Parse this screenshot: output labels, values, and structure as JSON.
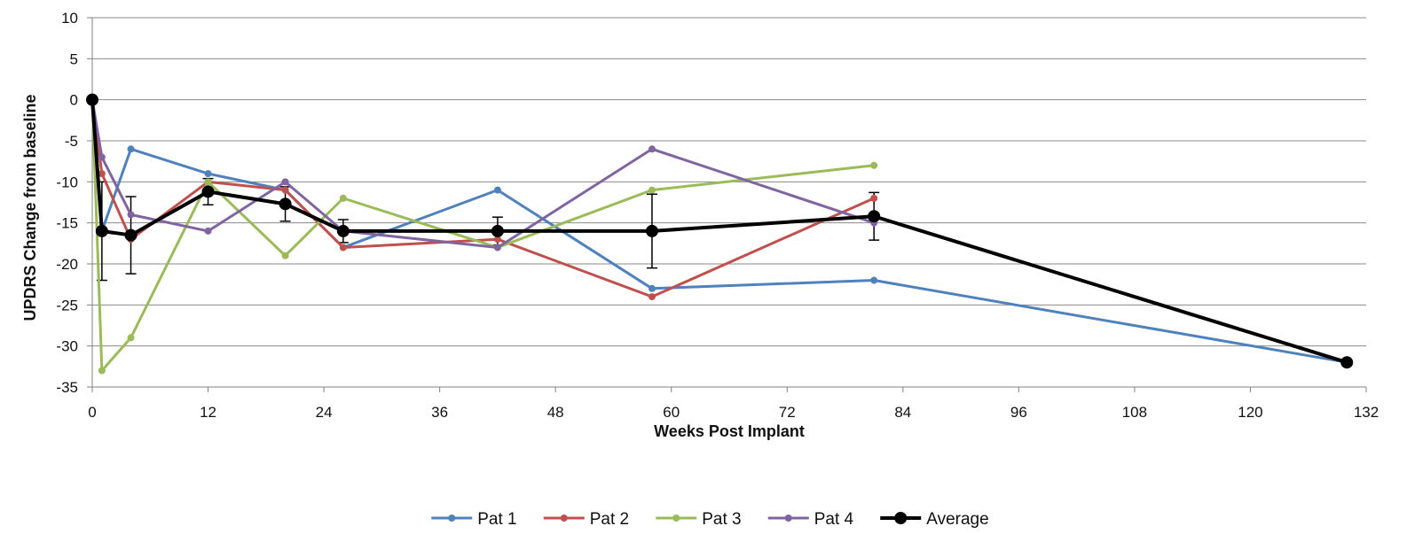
{
  "chart_data": {
    "type": "line",
    "title": "",
    "xlabel": "Weeks Post Implant",
    "ylabel": "UPDRS Change from baseline",
    "xlim": [
      0,
      132
    ],
    "ylim": [
      -35,
      10
    ],
    "xticks": [
      0,
      12,
      24,
      36,
      48,
      60,
      72,
      84,
      96,
      108,
      120,
      132
    ],
    "yticks": [
      10,
      5,
      0,
      -5,
      -10,
      -15,
      -20,
      -25,
      -30,
      -35
    ],
    "grid": "horizontal",
    "legend_position": "bottom",
    "series": [
      {
        "name": "Pat 1",
        "color": "#4f81bd",
        "x": [
          0,
          1,
          4,
          12,
          20,
          26,
          42,
          58,
          81,
          130
        ],
        "y": [
          0,
          -16,
          -6,
          -9,
          -11,
          -18,
          -11,
          -23,
          -22,
          -32
        ]
      },
      {
        "name": "Pat 2",
        "color": "#c0504d",
        "x": [
          0,
          1,
          4,
          12,
          20,
          26,
          42,
          58,
          81
        ],
        "y": [
          0,
          -9,
          -17,
          -10,
          -11,
          -18,
          -17,
          -24,
          -12
        ]
      },
      {
        "name": "Pat 3",
        "color": "#9bbb59",
        "x": [
          0,
          1,
          4,
          12,
          20,
          26,
          42,
          58,
          81
        ],
        "y": [
          0,
          -33,
          -29,
          -10,
          -19,
          -12,
          -18,
          -11,
          -8
        ]
      },
      {
        "name": "Pat 4",
        "color": "#8064a2",
        "x": [
          0,
          1,
          4,
          12,
          20,
          26,
          42,
          58,
          81
        ],
        "y": [
          0,
          -7,
          -14,
          -16,
          -10,
          -16,
          -18,
          -6,
          -15
        ]
      },
      {
        "name": "Average",
        "color": "#000000",
        "x": [
          0,
          1,
          4,
          12,
          20,
          26,
          42,
          58,
          81,
          130
        ],
        "y": [
          0,
          -16,
          -16.5,
          -11.2,
          -12.7,
          -16,
          -16,
          -16,
          -14.2,
          -32
        ],
        "error": [
          0,
          6,
          4.7,
          1.6,
          2.1,
          1.4,
          1.7,
          4.5,
          2.9,
          0
        ]
      }
    ]
  }
}
